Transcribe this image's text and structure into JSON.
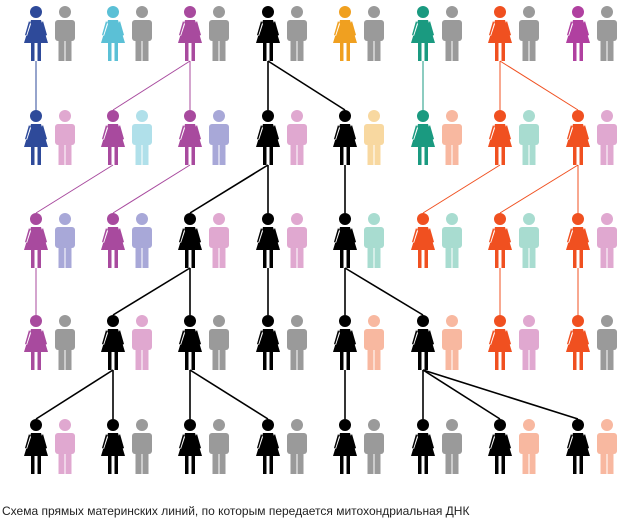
{
  "caption": "Схема прямых материнских линий, по которым передается митохондриальная ДНК"
}
